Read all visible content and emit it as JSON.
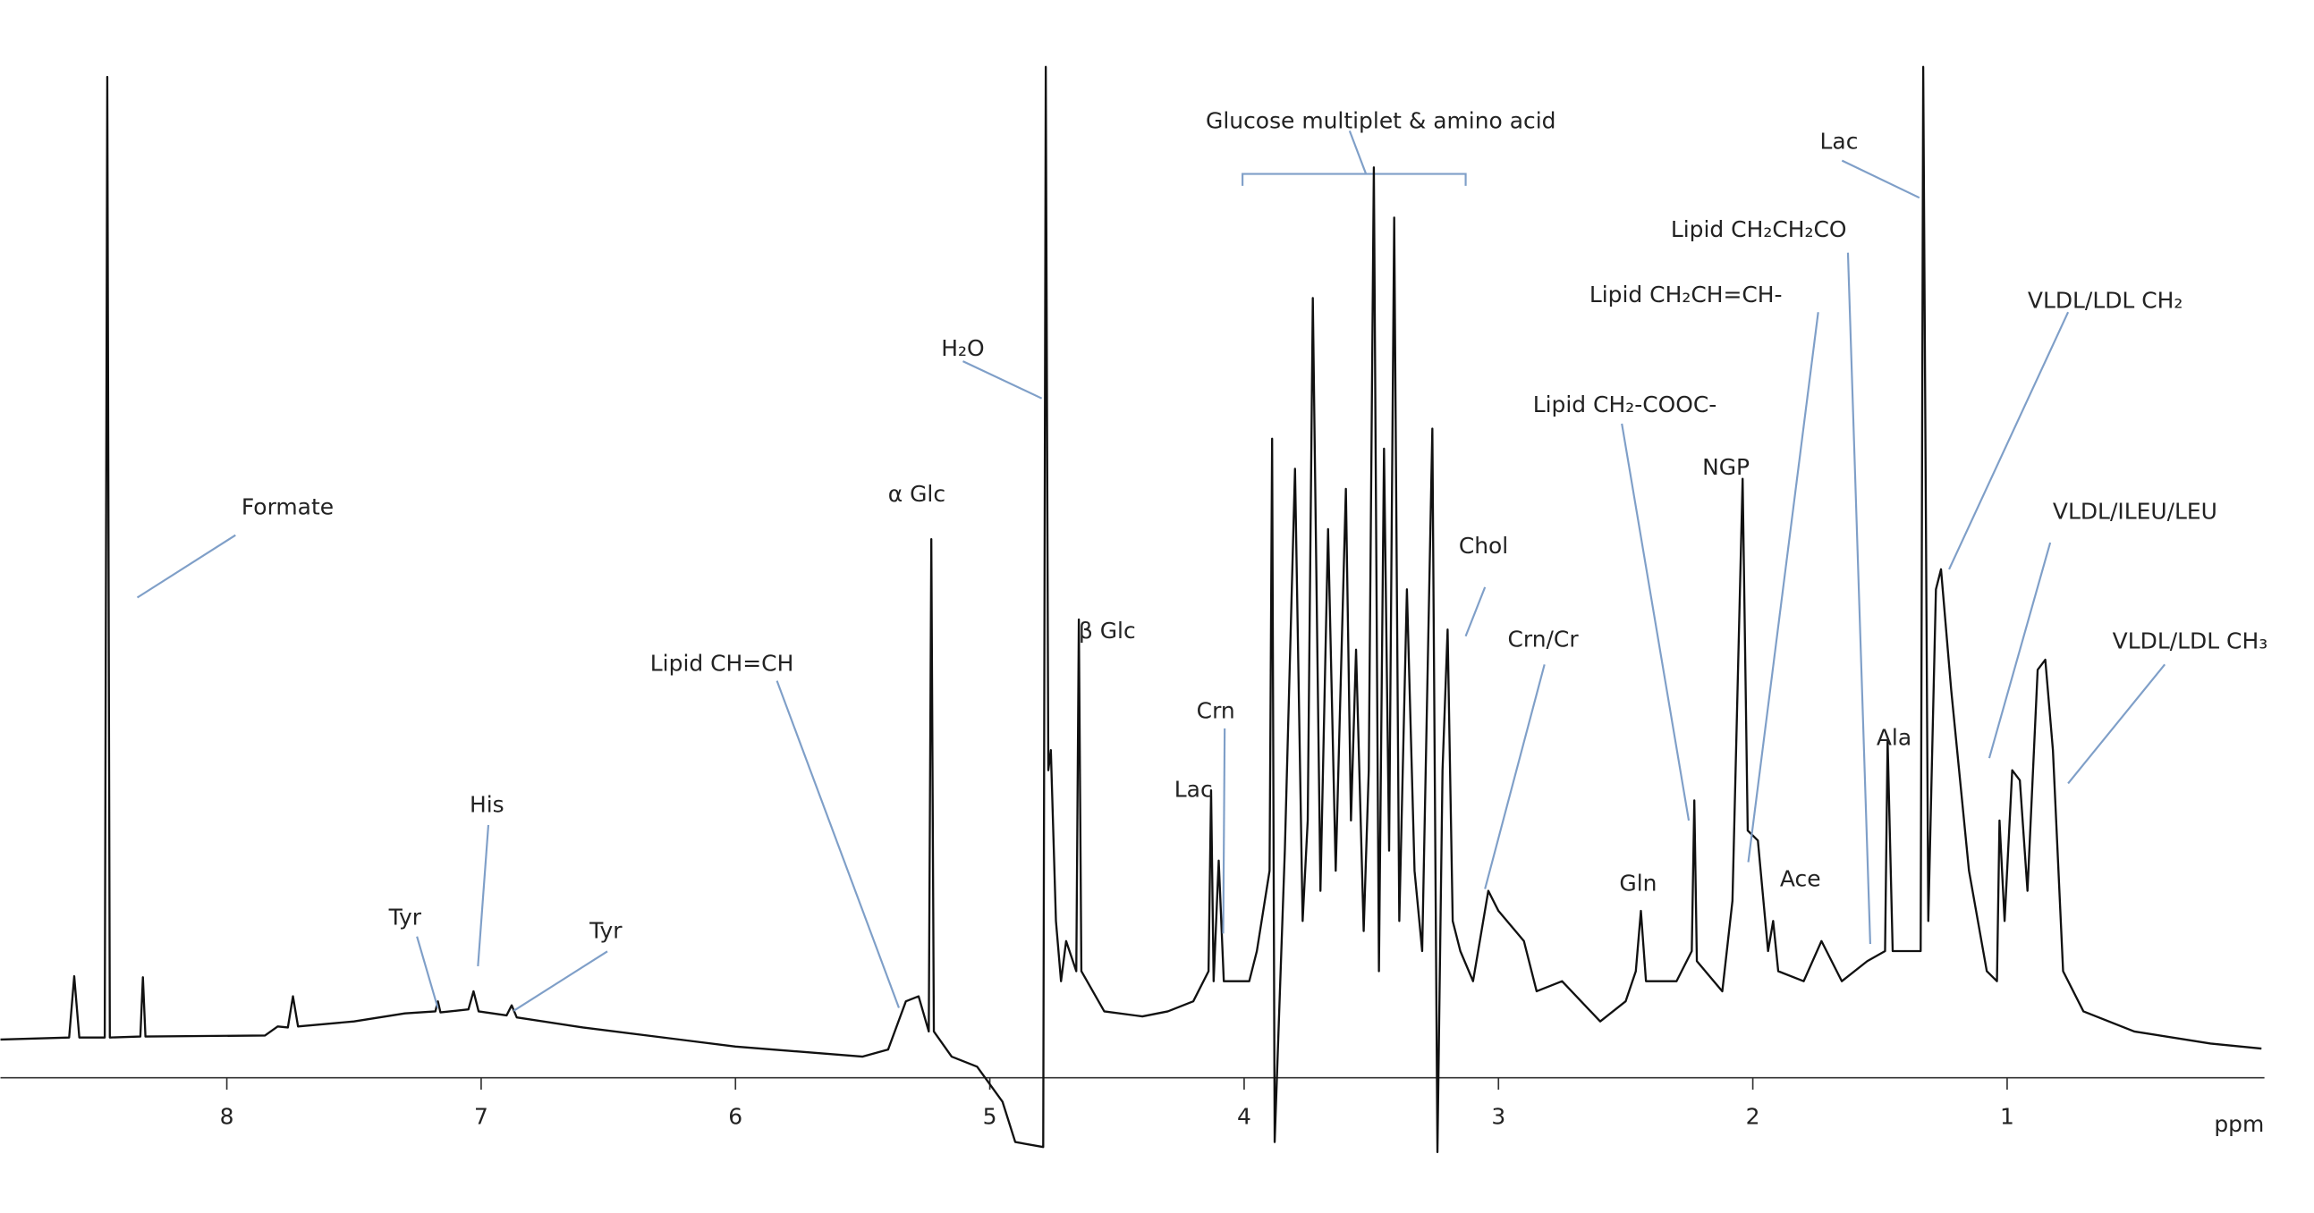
{
  "chart_data": {
    "type": "line",
    "xlabel": "ppm",
    "xlim": [
      8.89,
      0
    ],
    "ylim": [
      -8,
      100
    ],
    "xticks": [
      8,
      7,
      6,
      5,
      4,
      3,
      2,
      1
    ],
    "color": "#111111",
    "annotations": [
      "Formate",
      "His",
      "Tyr",
      "Tyr",
      "Lipid CH=CH",
      "α Glc",
      "H₂O",
      "β Glc",
      "Crn",
      "Lac",
      "Glucose multiplet & amino acid",
      "Chol",
      "Crn/Cr",
      "Lipid CH₂-COOC-",
      "NGP",
      "Gln",
      "Ace",
      "Lipid CH₂CH=CH-",
      "Lipid CH₂CH₂CO",
      "Lac",
      "Ala",
      "VLDL/LDL CH₂",
      "VLDL/ILEU/LEU",
      "VLDL/LDL CH₃"
    ],
    "x": [
      8.89,
      8.62,
      8.6,
      8.58,
      8.48,
      8.47,
      8.46,
      8.34,
      8.33,
      8.32,
      7.85,
      7.8,
      7.76,
      7.74,
      7.72,
      7.5,
      7.3,
      7.18,
      7.17,
      7.16,
      7.05,
      7.03,
      7.01,
      6.9,
      6.88,
      6.86,
      6.6,
      6.0,
      5.5,
      5.4,
      5.33,
      5.28,
      5.24,
      5.23,
      5.22,
      5.15,
      5.05,
      4.95,
      4.9,
      4.79,
      4.78,
      4.77,
      4.76,
      4.74,
      4.72,
      4.7,
      4.66,
      4.65,
      4.64,
      4.55,
      4.4,
      4.3,
      4.2,
      4.14,
      4.13,
      4.12,
      4.1,
      4.08,
      3.98,
      3.95,
      3.9,
      3.89,
      3.88,
      3.84,
      3.8,
      3.77,
      3.75,
      3.73,
      3.7,
      3.67,
      3.64,
      3.6,
      3.58,
      3.56,
      3.53,
      3.51,
      3.49,
      3.47,
      3.45,
      3.43,
      3.41,
      3.39,
      3.36,
      3.33,
      3.3,
      3.26,
      3.24,
      3.22,
      3.2,
      3.18,
      3.15,
      3.1,
      3.04,
      3.0,
      2.9,
      2.85,
      2.75,
      2.6,
      2.5,
      2.46,
      2.44,
      2.42,
      2.3,
      2.24,
      2.23,
      2.22,
      2.12,
      2.08,
      2.04,
      2.02,
      1.98,
      1.94,
      1.92,
      1.9,
      1.8,
      1.73,
      1.65,
      1.55,
      1.48,
      1.47,
      1.45,
      1.34,
      1.33,
      1.31,
      1.28,
      1.26,
      1.22,
      1.15,
      1.08,
      1.04,
      1.03,
      1.01,
      0.98,
      0.95,
      0.92,
      0.88,
      0.85,
      0.82,
      0.78,
      0.7,
      0.5,
      0.2,
      0.0
    ],
    "values": [
      3.2,
      3.4,
      9.5,
      3.4,
      3.4,
      99,
      3.4,
      3.5,
      9.4,
      3.5,
      3.6,
      4.5,
      4.4,
      7.5,
      4.5,
      5.0,
      5.8,
      6.0,
      7.0,
      5.9,
      6.2,
      8.0,
      6.0,
      5.6,
      6.6,
      5.4,
      4.4,
      2.5,
      1.5,
      2.2,
      7.0,
      7.5,
      4.0,
      53,
      4.0,
      1.5,
      0.5,
      -3,
      -7,
      -7.5,
      100,
      30,
      32,
      15,
      9,
      13,
      10,
      45,
      10,
      6,
      5.5,
      6,
      7,
      10,
      28,
      9,
      21,
      9,
      9,
      12,
      20,
      63,
      -7,
      22,
      60,
      15,
      25,
      77,
      18,
      54,
      20,
      58,
      25,
      42,
      14,
      30,
      90,
      10,
      62,
      22,
      85,
      15,
      48,
      20,
      12,
      64,
      -8,
      30,
      44,
      15,
      12,
      9,
      18,
      16,
      13,
      8,
      9,
      5,
      7,
      10,
      16,
      9,
      9,
      12,
      27,
      11,
      8,
      17,
      59,
      24,
      23,
      12,
      15,
      10,
      9,
      13,
      9,
      11,
      12,
      33,
      12,
      12,
      100,
      15,
      48,
      50,
      38,
      20,
      10,
      9,
      25,
      15,
      30,
      29,
      18,
      40,
      41,
      32,
      10,
      6,
      4,
      2.8,
      2.3
    ]
  }
}
